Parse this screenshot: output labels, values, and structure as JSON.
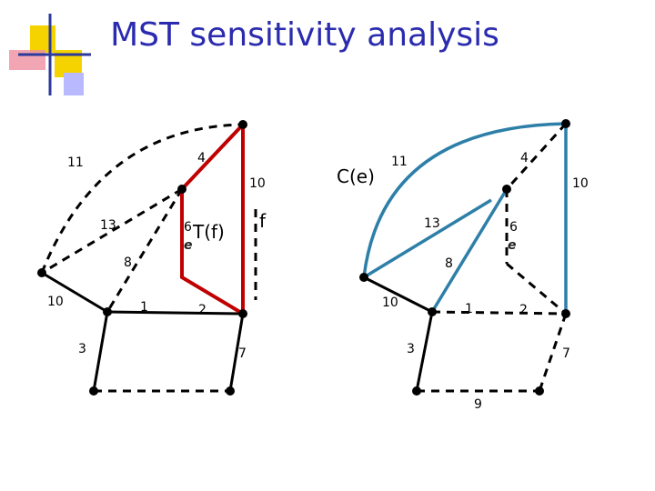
{
  "header": {
    "title": "MST sensitivity analysis"
  },
  "left_graph": {
    "edge_labels": [
      "11",
      "4",
      "10",
      "13",
      "6",
      "8",
      "10",
      "1",
      "2",
      "3",
      "7"
    ],
    "tree_label": "T(f)",
    "edge_e": "e",
    "edge_f": "f"
  },
  "right_graph": {
    "edge_labels": [
      "11",
      "4",
      "10",
      "13",
      "6",
      "8",
      "10",
      "1",
      "2",
      "3",
      "7",
      "9"
    ],
    "cycle_label": "C(e)",
    "edge_e": "e"
  }
}
